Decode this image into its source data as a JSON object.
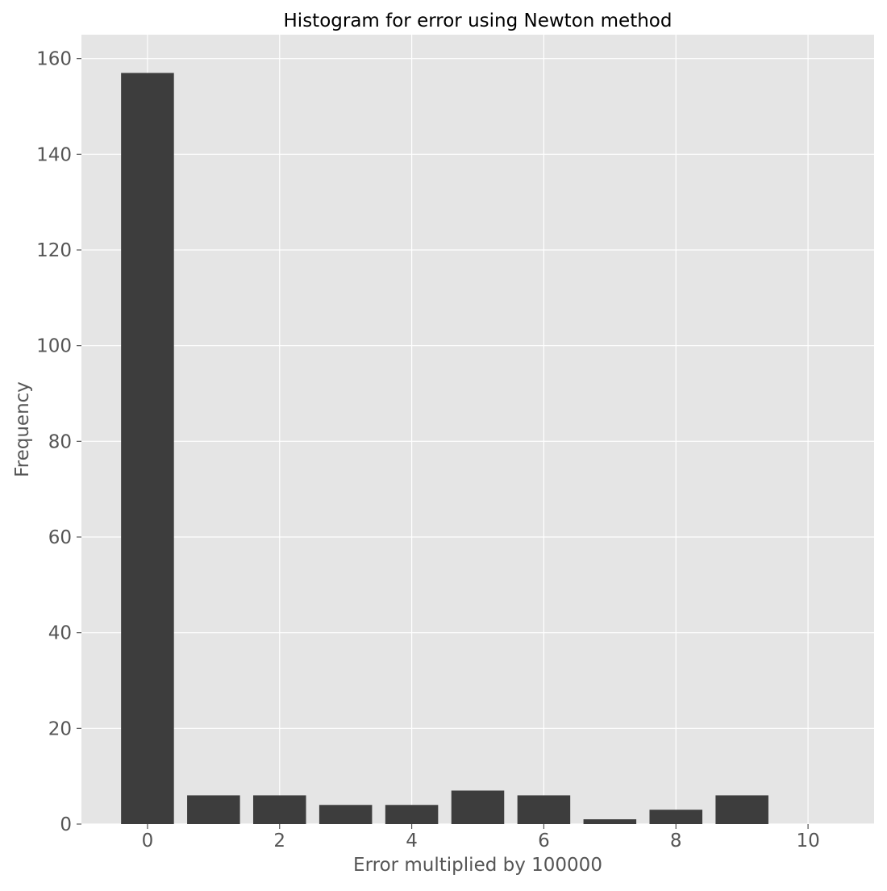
{
  "chart_data": {
    "type": "bar",
    "title": "Histogram for error using Newton method",
    "xlabel": "Error multiplied by 100000",
    "ylabel": "Frequency",
    "x": [
      0,
      1,
      2,
      3,
      4,
      5,
      6,
      7,
      8,
      9
    ],
    "values": [
      157,
      6,
      6,
      4,
      4,
      7,
      6,
      1,
      3,
      6
    ],
    "xlim": [
      -1,
      11
    ],
    "ylim": [
      0,
      165
    ],
    "xticks": [
      "0",
      "2",
      "4",
      "6",
      "8",
      "10"
    ],
    "yticks": [
      "0",
      "20",
      "40",
      "60",
      "80",
      "100",
      "120",
      "140",
      "160"
    ],
    "grid": true,
    "legend": "none"
  },
  "colors": {
    "plot_background": "#e5e5e5",
    "grid": "#ffffff",
    "bar": "#3d3d3d",
    "tick_text": "#555555",
    "title_text": "#000000"
  }
}
